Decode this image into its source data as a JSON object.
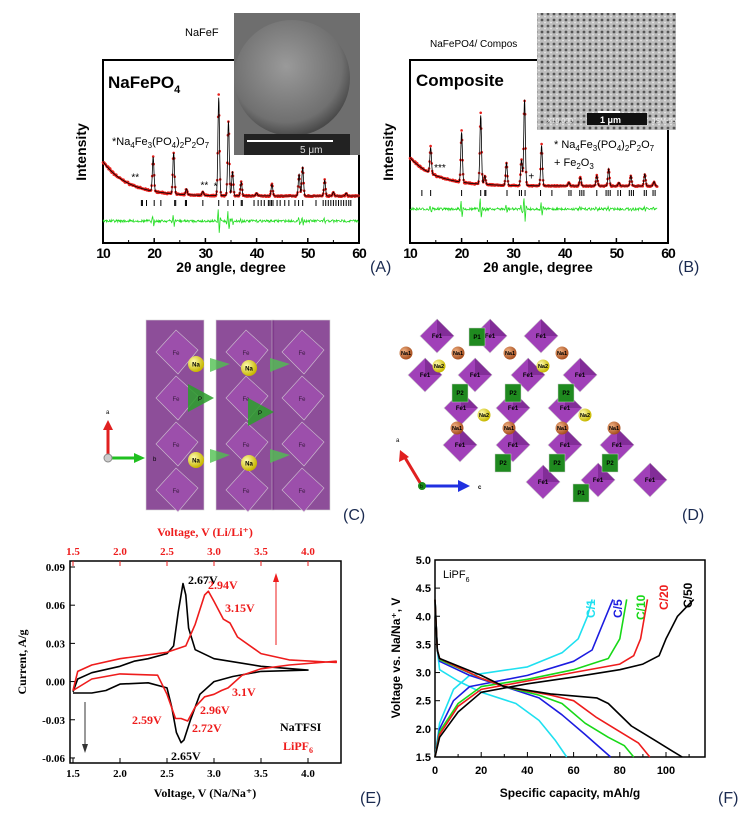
{
  "colors": {
    "observed": "#e8201c",
    "calculated": "#000000",
    "difference": "#22dd22",
    "bragg": "#000000",
    "naTFSI": "#000000",
    "liPF6": "#ee1c1c",
    "c1": "#1ee0f0",
    "c5": "#1c1ce0",
    "c10": "#18d818",
    "c20": "#ee1c1c",
    "c50": "#000000",
    "fe_polyhedra": "#8a3a9a",
    "p_polyhedra": "#2aa02a",
    "na": "#e8e020",
    "na1": "#d2753a"
  },
  "panels": {
    "A": "(A)",
    "B": "(B)",
    "C": "(C)",
    "D": "(D)",
    "E": "(E)",
    "F": "(F)"
  },
  "chart_data": [
    {
      "id": "A",
      "type": "line",
      "title": "NaFePO4",
      "title_main": "NaFePO",
      "title_sub": "4",
      "xlabel": "2θ angle, degree",
      "ylabel": "Intensity",
      "xlim": [
        10,
        60
      ],
      "xticks": [
        "10",
        "20",
        "30",
        "40",
        "50",
        "60"
      ],
      "annotation": {
        "star": "*Na",
        "s1": "4",
        "t1": "Fe",
        "s2": "3",
        "t2": "(PO",
        "s3": "4",
        "t3": ")",
        "s4": "2",
        "t4": "P",
        "s5": "2",
        "t5": "O",
        "s6": "7"
      },
      "markers": [
        {
          "x": 16.3,
          "text": "**"
        },
        {
          "x": 29.8,
          "text": "**"
        },
        {
          "x": 32.0,
          "text": "*"
        }
      ],
      "inset": {
        "caption": "NaFeF",
        "scale_bar": "5 μm"
      },
      "series": [
        {
          "role": "observed"
        },
        {
          "role": "calculated"
        },
        {
          "role": "difference"
        },
        {
          "role": "bragg"
        }
      ],
      "peaks": [
        [
          19.8,
          0.35
        ],
        [
          23.8,
          0.42
        ],
        [
          26.3,
          0.06
        ],
        [
          29.5,
          0.04
        ],
        [
          32.6,
          1.0
        ],
        [
          34.5,
          0.76
        ],
        [
          35.3,
          0.25
        ],
        [
          37.0,
          0.14
        ],
        [
          40.0,
          0.03
        ],
        [
          43.0,
          0.12
        ],
        [
          48.3,
          0.22
        ],
        [
          49.0,
          0.3
        ],
        [
          53.3,
          0.16
        ],
        [
          55.0,
          0.04
        ],
        [
          57.5,
          0.03
        ]
      ],
      "bragg_positions": [
        17.5,
        17.7,
        18.5,
        20.0,
        21.3,
        24.0,
        24.2,
        26.1,
        26.3,
        29.5,
        32.6,
        34.4,
        35.5,
        37.0,
        37.2,
        39.5,
        40.3,
        40.9,
        41.5,
        42.3,
        42.6,
        42.9,
        43.2,
        44.0,
        44.6,
        45.5,
        46.3,
        47.5,
        48.2,
        49.0,
        51.6,
        53.0,
        53.5,
        54.0,
        54.5,
        55.0,
        55.5,
        56.0,
        56.5,
        57.0,
        57.5,
        58.0,
        58.4
      ]
    },
    {
      "id": "B",
      "type": "line",
      "title": "Composite",
      "xlabel": "2θ angle, degree",
      "ylabel": "Intensity",
      "xlim": [
        10,
        60
      ],
      "xticks": [
        "10",
        "20",
        "30",
        "40",
        "50",
        "60"
      ],
      "annotation": {
        "star": "* Na",
        "s1": "4",
        "t1": "Fe",
        "s2": "3",
        "t2": "(PO",
        "s3": "4",
        "t3": ")",
        "s4": "2",
        "t4": "P",
        "s5": "2",
        "t5": "O",
        "s6": "7",
        "plus": "+ Fe",
        "p1": "2",
        "p2": "O",
        "p3": "3"
      },
      "markers": [
        {
          "x": 15.8,
          "text": "***"
        },
        {
          "x": 33.5,
          "text": "+"
        }
      ],
      "inset": {
        "caption": "NaFePO4/ Compos",
        "scale_bar": "1 μm",
        "magnification": "X10,000",
        "instrument": "JSM-55"
      },
      "series": [
        {
          "role": "observed"
        },
        {
          "role": "calculated"
        },
        {
          "role": "difference"
        },
        {
          "role": "bragg"
        }
      ],
      "peaks": [
        [
          14.0,
          0.3
        ],
        [
          20.0,
          0.58
        ],
        [
          23.7,
          0.8
        ],
        [
          24.5,
          0.1
        ],
        [
          28.7,
          0.26
        ],
        [
          31.6,
          0.3
        ],
        [
          32.2,
          1.0
        ],
        [
          35.5,
          0.47
        ],
        [
          40.8,
          0.04
        ],
        [
          43.0,
          0.1
        ],
        [
          46.2,
          0.12
        ],
        [
          48.5,
          0.2
        ],
        [
          50.5,
          0.04
        ],
        [
          52.8,
          0.12
        ],
        [
          55.5,
          0.14
        ],
        [
          57.3,
          0.05
        ]
      ],
      "bragg_positions": [
        12.3,
        14.0,
        20.0,
        23.7,
        24.5,
        24.7,
        28.8,
        31.2,
        31.6,
        32.3,
        35.3,
        37.5,
        40.8,
        41.2,
        42.9,
        43.3,
        43.7,
        46.2,
        48.0,
        48.4,
        48.8,
        50.3,
        50.8,
        52.5,
        52.9,
        53.3,
        55.4,
        55.8,
        57.1,
        57.5
      ]
    },
    {
      "id": "E",
      "type": "line",
      "xlabel": "Voltage, V (Na/Na⁺)",
      "x2label": "Voltage, V (Li/Li⁺)",
      "ylabel": "Current, A/g",
      "xlim": [
        1.5,
        4.3
      ],
      "ylim": [
        -0.06,
        0.09
      ],
      "xticks": [
        "1.5",
        "2.0",
        "2.5",
        "3.0",
        "3.5",
        "4.0"
      ],
      "x2ticks": [
        "1.5",
        "2.0",
        "2.5",
        "3.0",
        "3.5",
        "4.0"
      ],
      "yticks": [
        "0.09",
        "0.06",
        "0.03",
        "0.00",
        "-0.03",
        "-0.06"
      ],
      "legend": [
        {
          "name": "NaTFSI"
        },
        {
          "name": "LiPF",
          "sub": "6"
        }
      ],
      "peak_labels": [
        {
          "text": "2.67V",
          "series": "NaTFSI"
        },
        {
          "text": "2.65V",
          "series": "NaTFSI"
        },
        {
          "text": "2.94V",
          "series": "LiPF6"
        },
        {
          "text": "3.15V",
          "series": "LiPF6"
        },
        {
          "text": "3.1V",
          "series": "LiPF6"
        },
        {
          "text": "2.96V",
          "series": "LiPF6"
        },
        {
          "text": "2.59V",
          "series": "LiPF6"
        },
        {
          "text": "2.72V",
          "series": "LiPF6"
        }
      ],
      "series": [
        {
          "name": "NaTFSI",
          "axis": "bottom",
          "points": [
            [
              1.5,
              -0.008
            ],
            [
              1.55,
              0.002
            ],
            [
              1.7,
              0.007
            ],
            [
              2.0,
              0.012
            ],
            [
              2.15,
              0.016
            ],
            [
              2.3,
              0.018
            ],
            [
              2.5,
              0.022
            ],
            [
              2.57,
              0.028
            ],
            [
              2.62,
              0.055
            ],
            [
              2.67,
              0.077
            ],
            [
              2.7,
              0.068
            ],
            [
              2.73,
              0.042
            ],
            [
              2.8,
              0.025
            ],
            [
              3.0,
              0.018
            ],
            [
              3.5,
              0.012
            ],
            [
              4.0,
              0.009
            ],
            [
              4.0,
              0.009
            ],
            [
              3.5,
              0.008
            ],
            [
              3.2,
              0.004
            ],
            [
              3.0,
              0.0
            ],
            [
              2.85,
              -0.01
            ],
            [
              2.75,
              -0.03
            ],
            [
              2.68,
              -0.046
            ],
            [
              2.65,
              -0.048
            ],
            [
              2.6,
              -0.04
            ],
            [
              2.55,
              -0.02
            ],
            [
              2.5,
              -0.005
            ],
            [
              2.3,
              -0.001
            ],
            [
              2.0,
              -0.002
            ],
            [
              1.85,
              -0.007
            ],
            [
              1.7,
              -0.009
            ],
            [
              1.5,
              -0.009
            ]
          ]
        },
        {
          "name": "LiPF6",
          "axis": "top",
          "points": [
            [
              1.5,
              -0.007
            ],
            [
              1.55,
              0.008
            ],
            [
              1.7,
              0.013
            ],
            [
              2.0,
              0.018
            ],
            [
              2.5,
              0.023
            ],
            [
              2.7,
              0.028
            ],
            [
              2.8,
              0.045
            ],
            [
              2.9,
              0.068
            ],
            [
              2.94,
              0.071
            ],
            [
              3.0,
              0.063
            ],
            [
              3.1,
              0.049
            ],
            [
              3.17,
              0.046
            ],
            [
              3.25,
              0.035
            ],
            [
              3.5,
              0.022
            ],
            [
              3.8,
              0.017
            ],
            [
              4.3,
              0.015
            ],
            [
              4.3,
              0.016
            ],
            [
              3.8,
              0.013
            ],
            [
              3.5,
              0.01
            ],
            [
              3.3,
              0.005
            ],
            [
              3.15,
              -0.005
            ],
            [
              3.08,
              -0.007
            ],
            [
              3.0,
              -0.01
            ],
            [
              2.9,
              -0.012
            ],
            [
              2.8,
              -0.02
            ],
            [
              2.72,
              -0.031
            ],
            [
              2.65,
              -0.029
            ],
            [
              2.59,
              -0.029
            ],
            [
              2.5,
              -0.01
            ],
            [
              2.4,
              0.005
            ],
            [
              2.0,
              0.006
            ],
            [
              1.7,
              0.002
            ],
            [
              1.5,
              -0.007
            ]
          ]
        }
      ]
    },
    {
      "id": "F",
      "type": "line",
      "xlabel": "Specific capacity, mAh/g",
      "ylabel": "Voltage vs. Na/Na⁺, V",
      "xlim": [
        0,
        115
      ],
      "ylim": [
        1.5,
        5.0
      ],
      "xticks": [
        "0",
        "20",
        "40",
        "60",
        "80",
        "100"
      ],
      "yticks": [
        "1.5",
        "2.0",
        "2.5",
        "3.0",
        "3.5",
        "4.0",
        "4.5",
        "5.0"
      ],
      "annotation": {
        "main": "LiPF",
        "sub": "6"
      },
      "series": [
        {
          "name": "C/1",
          "color_key": "c1",
          "charge": [
            [
              0,
              1.5
            ],
            [
              2,
              2.1
            ],
            [
              8,
              2.7
            ],
            [
              15,
              2.95
            ],
            [
              40,
              3.1
            ],
            [
              55,
              3.35
            ],
            [
              62,
              3.6
            ],
            [
              66,
              4.0
            ],
            [
              68,
              4.3
            ]
          ],
          "discharge": [
            [
              0,
              4.3
            ],
            [
              1,
              3.4
            ],
            [
              2,
              3.05
            ],
            [
              10,
              2.85
            ],
            [
              20,
              2.65
            ],
            [
              35,
              2.45
            ],
            [
              45,
              2.15
            ],
            [
              52,
              1.8
            ],
            [
              57,
              1.5
            ]
          ]
        },
        {
          "name": "C/5",
          "color_key": "c5",
          "charge": [
            [
              0,
              1.5
            ],
            [
              2,
              2.0
            ],
            [
              8,
              2.5
            ],
            [
              15,
              2.75
            ],
            [
              40,
              2.95
            ],
            [
              60,
              3.2
            ],
            [
              68,
              3.4
            ],
            [
              72,
              3.8
            ],
            [
              77,
              4.3
            ]
          ],
          "discharge": [
            [
              0,
              4.3
            ],
            [
              1,
              3.4
            ],
            [
              2,
              3.2
            ],
            [
              15,
              2.95
            ],
            [
              30,
              2.75
            ],
            [
              45,
              2.55
            ],
            [
              55,
              2.25
            ],
            [
              65,
              1.9
            ],
            [
              76,
              1.5
            ]
          ]
        },
        {
          "name": "C/10",
          "color_key": "c10",
          "charge": [
            [
              0,
              1.5
            ],
            [
              2,
              1.95
            ],
            [
              10,
              2.45
            ],
            [
              20,
              2.75
            ],
            [
              40,
              2.88
            ],
            [
              60,
              3.05
            ],
            [
              75,
              3.25
            ],
            [
              80,
              3.6
            ],
            [
              83,
              4.3
            ]
          ],
          "discharge": [
            [
              0,
              4.3
            ],
            [
              1,
              3.4
            ],
            [
              2,
              3.23
            ],
            [
              20,
              2.9
            ],
            [
              30,
              2.75
            ],
            [
              45,
              2.6
            ],
            [
              55,
              2.45
            ],
            [
              65,
              2.1
            ],
            [
              75,
              1.85
            ],
            [
              82,
              1.7
            ],
            [
              86,
              1.5
            ]
          ]
        },
        {
          "name": "C/20",
          "color_key": "c20",
          "charge": [
            [
              0,
              1.5
            ],
            [
              2,
              1.9
            ],
            [
              10,
              2.4
            ],
            [
              20,
              2.7
            ],
            [
              40,
              2.85
            ],
            [
              60,
              3.0
            ],
            [
              80,
              3.15
            ],
            [
              86,
              3.3
            ],
            [
              89,
              3.6
            ],
            [
              92,
              4.3
            ]
          ],
          "discharge": [
            [
              0,
              4.3
            ],
            [
              1,
              3.4
            ],
            [
              2,
              3.25
            ],
            [
              20,
              2.9
            ],
            [
              30,
              2.75
            ],
            [
              50,
              2.6
            ],
            [
              60,
              2.5
            ],
            [
              70,
              2.2
            ],
            [
              80,
              1.95
            ],
            [
              88,
              1.75
            ],
            [
              93,
              1.5
            ]
          ]
        },
        {
          "name": "C/50",
          "color_key": "c50",
          "charge": [
            [
              0,
              1.5
            ],
            [
              2,
              1.85
            ],
            [
              10,
              2.3
            ],
            [
              20,
              2.65
            ],
            [
              40,
              2.8
            ],
            [
              60,
              2.92
            ],
            [
              80,
              3.05
            ],
            [
              90,
              3.15
            ],
            [
              97,
              3.3
            ],
            [
              100,
              3.6
            ],
            [
              105,
              4.0
            ],
            [
              112,
              4.3
            ]
          ],
          "discharge": [
            [
              0,
              4.3
            ],
            [
              1,
              3.4
            ],
            [
              2,
              3.25
            ],
            [
              20,
              2.95
            ],
            [
              30,
              2.75
            ],
            [
              50,
              2.62
            ],
            [
              70,
              2.55
            ],
            [
              75,
              2.45
            ],
            [
              85,
              2.05
            ],
            [
              95,
              1.8
            ],
            [
              103,
              1.6
            ],
            [
              107,
              1.5
            ]
          ]
        }
      ]
    }
  ],
  "structure_c": {
    "na": "Na",
    "fe": "Fe",
    "p": "P",
    "axis_a": "a",
    "axis_b": "b"
  },
  "structure_d": {
    "na1": "Na1",
    "na2": "Na2",
    "fe1": "Fe1",
    "p1": "P1",
    "p2": "P2",
    "axis_a": "a",
    "axis_b": "b",
    "axis_c": "c"
  }
}
